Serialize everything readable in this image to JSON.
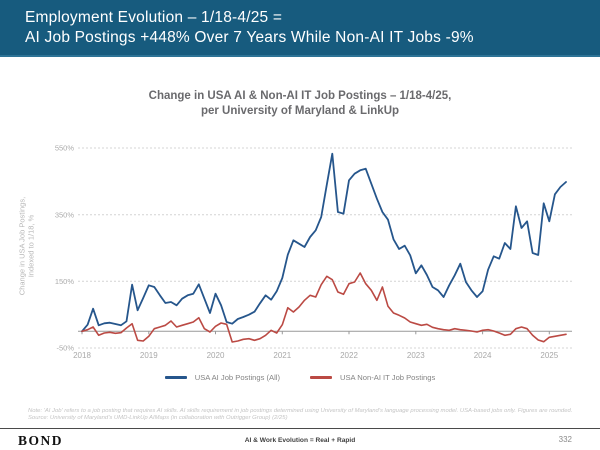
{
  "header": {
    "line1": "Employment Evolution – 1/18-4/25 =",
    "line2": "AI Job Postings +448% Over 7 Years While Non-AI IT Jobs -9%"
  },
  "chart_title": {
    "line1": "Change in USA AI & Non-AI IT Job Postings – 1/18-4/25,",
    "line2": "per University of Maryland & LinkUp"
  },
  "chart_data": {
    "type": "line",
    "title": "Change in USA AI & Non-AI IT Job Postings – 1/18-4/25, per University of Maryland & LinkUp",
    "xlabel": "",
    "ylabel_line1": "Change in USA Job Postings,",
    "ylabel_line2": "Indexed to 1/18, %",
    "x_interval": "monthly",
    "x_range": "Jan 2018 – Apr 2025",
    "categories": [
      "2018",
      "2019",
      "2020",
      "2021",
      "2022",
      "2023",
      "2024",
      "2025"
    ],
    "y_ticks": [
      550,
      350,
      150,
      -50
    ],
    "ylim": [
      -80,
      610
    ],
    "grid": "horizontal-dashed",
    "legend_position": "bottom",
    "colors": {
      "grid": "#d4d4d4",
      "axis": "#999999",
      "tick_label": "#ababab"
    },
    "series": [
      {
        "name": "USA AI Job Postings (All)",
        "color": "#26568c",
        "values": [
          0,
          20,
          68,
          18,
          24,
          26,
          22,
          18,
          30,
          140,
          63,
          100,
          138,
          133,
          108,
          85,
          88,
          78,
          98,
          108,
          113,
          141,
          98,
          55,
          113,
          78,
          28,
          23,
          37,
          43,
          50,
          59,
          84,
          108,
          95,
          120,
          160,
          230,
          273,
          263,
          253,
          283,
          303,
          343,
          440,
          533,
          358,
          353,
          453,
          473,
          483,
          488,
          443,
          398,
          358,
          335,
          276,
          247,
          257,
          228,
          174,
          198,
          169,
          133,
          123,
          103,
          138,
          168,
          203,
          148,
          123,
          103,
          120,
          185,
          225,
          218,
          265,
          247,
          375,
          310,
          330,
          235,
          229,
          384,
          330,
          411,
          433,
          448
        ]
      },
      {
        "name": "USA Non-AI IT Job Postings",
        "color": "#bb4a44",
        "values": [
          0,
          5,
          13,
          -12,
          -5,
          -3,
          -6,
          -4,
          10,
          23,
          -27,
          -29,
          -15,
          8,
          13,
          18,
          31,
          13,
          18,
          23,
          28,
          41,
          8,
          -2,
          15,
          25,
          21,
          -32,
          -29,
          -24,
          -22,
          -27,
          -22,
          -12,
          3,
          -5,
          20,
          71,
          58,
          73,
          93,
          108,
          103,
          140,
          165,
          155,
          118,
          111,
          143,
          148,
          175,
          143,
          123,
          93,
          133,
          75,
          55,
          48,
          40,
          28,
          23,
          18,
          21,
          12,
          8,
          5,
          3,
          8,
          5,
          3,
          1,
          -2,
          3,
          5,
          1,
          -5,
          -12,
          -9,
          8,
          13,
          8,
          -12,
          -26,
          -31,
          -18,
          -15,
          -12,
          -9
        ]
      }
    ]
  },
  "footnote": {
    "text": "Note: 'AI Job' refers to a job posting that requires AI skills. AI skills requirement in job postings determined using University of Maryland's language processing model. USA-based jobs only. Figures are rounded. Source: University of Maryland's UMD-LinkUp AIMaps (in collaboration with Outrigger Group) (2/25)"
  },
  "footer": {
    "logo": "BOND",
    "center": "AI & Work Evolution = Real + Rapid",
    "page": "332"
  }
}
